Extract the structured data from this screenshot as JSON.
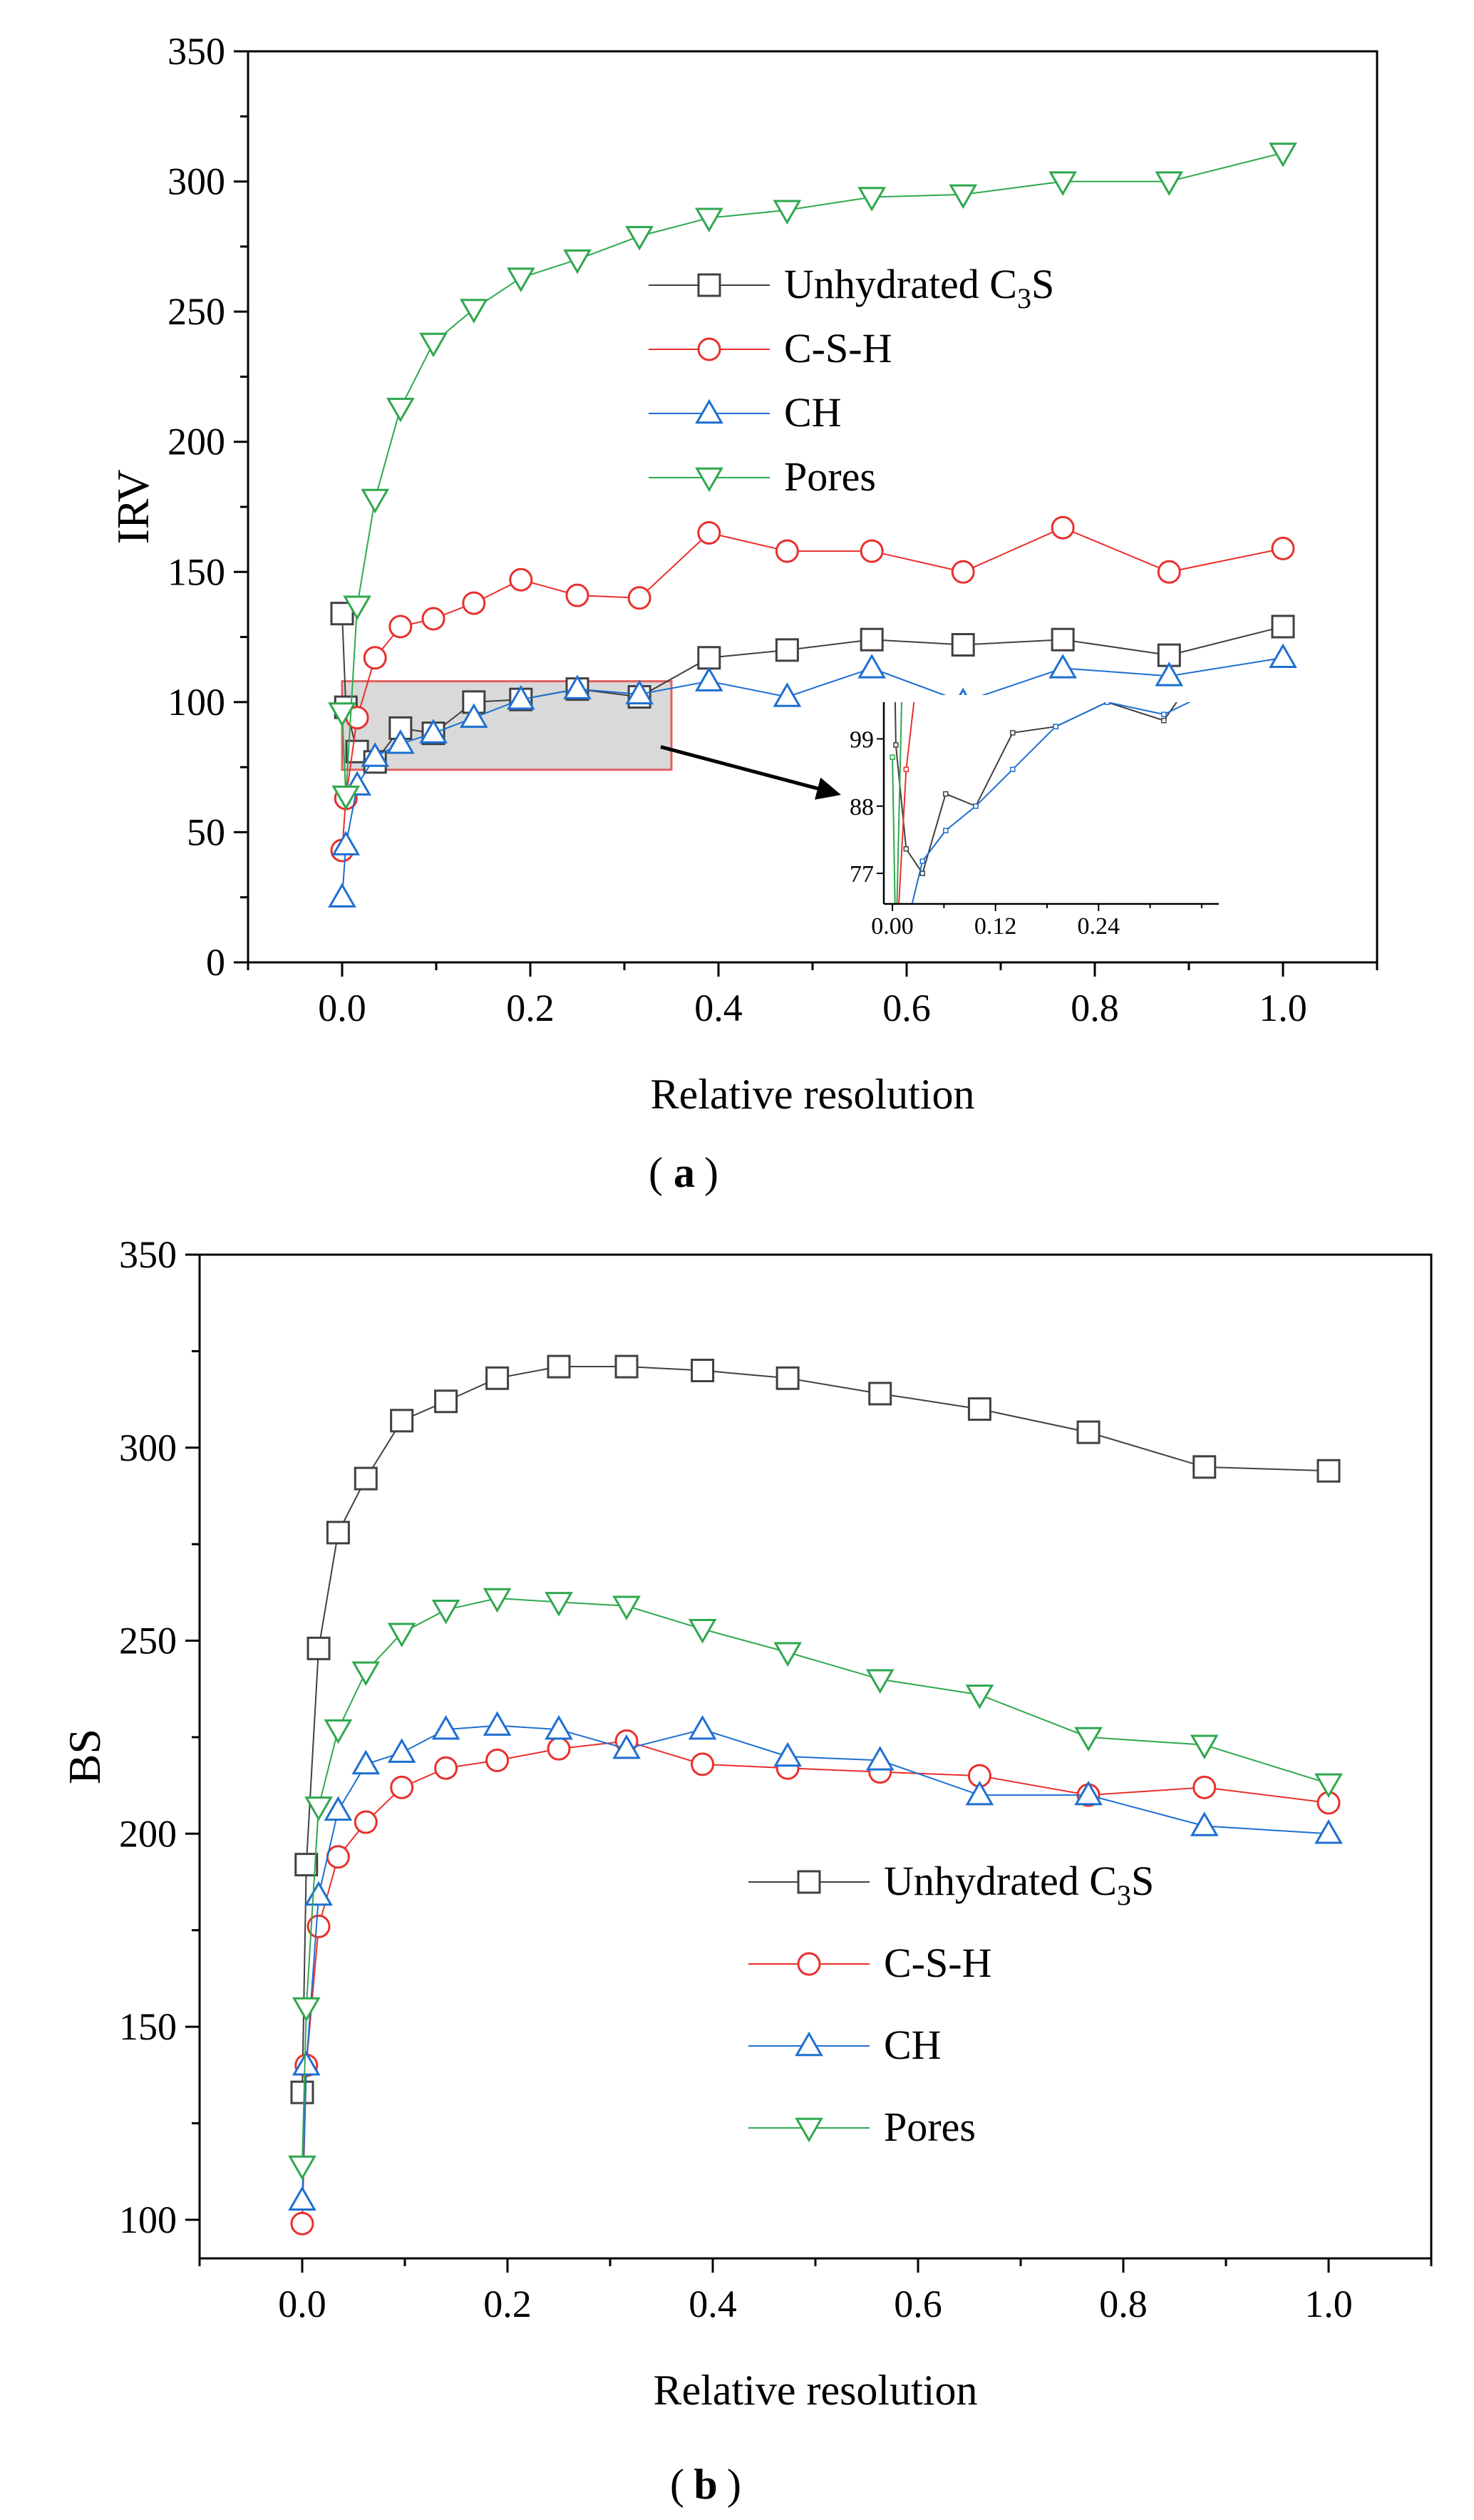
{
  "figure": {
    "panel_a_label": "a",
    "panel_b_label": "b"
  },
  "colors": {
    "Unhydrated C3S": "#404040",
    "C-S-H": "#e8302c",
    "CH": "#1e6fd0",
    "Pores": "#2fa84f",
    "highlight_fill": "#d9d9d9",
    "highlight_stroke": "#e06060"
  },
  "chart_data": [
    {
      "id": "a",
      "type": "line",
      "title": "",
      "xlabel": "Relative resolution",
      "ylabel": "IRV",
      "xlim": [
        -0.1,
        1.1
      ],
      "ylim": [
        0,
        350
      ],
      "xticks": [
        0.0,
        0.2,
        0.4,
        0.6,
        0.8,
        1.0
      ],
      "xtick_labels": [
        "0.0",
        "0.2",
        "0.4",
        "0.6",
        "0.8",
        "1.0"
      ],
      "yticks": [
        0,
        50,
        100,
        150,
        200,
        250,
        300,
        350
      ],
      "ytick_labels": [
        "0",
        "50",
        "100",
        "150",
        "200",
        "250",
        "300",
        "350"
      ],
      "legend_position": "upper-center",
      "series": [
        {
          "name": "Unhydrated C3S",
          "legend_label": "Unhydrated C",
          "legend_sub": "3",
          "legend_suffix": "S",
          "marker": "square",
          "x": [
            0.0,
            0.004,
            0.016,
            0.035,
            0.062,
            0.097,
            0.14,
            0.19,
            0.25,
            0.316,
            0.39,
            0.473,
            0.563,
            0.66,
            0.766,
            0.879,
            1.0
          ],
          "y": [
            134,
            98,
            81,
            77,
            90,
            88,
            100,
            101,
            105,
            102,
            117,
            120,
            124,
            122,
            124,
            118,
            129
          ]
        },
        {
          "name": "C-S-H",
          "legend_label": "C-S-H",
          "marker": "circle",
          "x": [
            0.0,
            0.004,
            0.016,
            0.035,
            0.062,
            0.097,
            0.14,
            0.19,
            0.25,
            0.316,
            0.39,
            0.473,
            0.563,
            0.66,
            0.766,
            0.879,
            1.0
          ],
          "y": [
            43,
            63,
            94,
            117,
            129,
            132,
            138,
            147,
            141,
            140,
            165,
            158,
            158,
            150,
            167,
            150,
            159
          ]
        },
        {
          "name": "CH",
          "legend_label": "CH",
          "marker": "triangle-up",
          "x": [
            0.0,
            0.004,
            0.016,
            0.035,
            0.062,
            0.097,
            0.14,
            0.19,
            0.25,
            0.316,
            0.39,
            0.473,
            0.563,
            0.66,
            0.766,
            0.879,
            1.0
          ],
          "y": [
            25,
            45,
            68,
            79,
            84,
            88,
            94,
            101,
            105,
            103,
            108,
            102,
            113,
            100,
            113,
            110,
            117
          ]
        },
        {
          "name": "Pores",
          "legend_label": "Pores",
          "marker": "triangle-down",
          "x": [
            0.0,
            0.004,
            0.016,
            0.035,
            0.062,
            0.097,
            0.14,
            0.19,
            0.25,
            0.316,
            0.39,
            0.473,
            0.563,
            0.66,
            0.766,
            0.879,
            1.0
          ],
          "y": [
            96,
            64,
            137,
            178,
            213,
            238,
            251,
            263,
            270,
            279,
            286,
            289,
            294,
            295,
            300,
            300,
            311
          ]
        }
      ],
      "highlight_box": {
        "x": [
          0.0,
          0.35
        ],
        "y": [
          74,
          108
        ]
      },
      "inset": {
        "xlim": [
          -0.01,
          0.38
        ],
        "ylim": [
          72,
          105
        ],
        "xticks": [
          0.0,
          0.12,
          0.24
        ],
        "xtick_labels": [
          "0.00",
          "0.12",
          "0.24"
        ],
        "yticks": [
          77,
          88,
          99
        ],
        "ytick_labels": [
          "77",
          "88",
          "99"
        ]
      }
    },
    {
      "id": "b",
      "type": "line",
      "title": "",
      "xlabel": "Relative resolution",
      "ylabel": "BS",
      "xlim": [
        -0.1,
        1.1
      ],
      "ylim": [
        90,
        350
      ],
      "xticks": [
        0.0,
        0.2,
        0.4,
        0.6,
        0.8,
        1.0
      ],
      "xtick_labels": [
        "0.0",
        "0.2",
        "0.4",
        "0.6",
        "0.8",
        "1.0"
      ],
      "yticks": [
        100,
        150,
        200,
        250,
        300,
        350
      ],
      "ytick_labels": [
        "100",
        "150",
        "200",
        "250",
        "300",
        "350"
      ],
      "legend_position": "lower-right",
      "series": [
        {
          "name": "Unhydrated C3S",
          "legend_label": "Unhydrated C",
          "legend_sub": "3",
          "legend_suffix": "S",
          "marker": "square",
          "x": [
            0.0,
            0.004,
            0.016,
            0.035,
            0.062,
            0.097,
            0.14,
            0.19,
            0.25,
            0.316,
            0.39,
            0.473,
            0.563,
            0.66,
            0.766,
            0.879,
            1.0
          ],
          "y": [
            133,
            192,
            248,
            278,
            292,
            307,
            312,
            318,
            321,
            321,
            320,
            318,
            314,
            310,
            304,
            295,
            294
          ]
        },
        {
          "name": "C-S-H",
          "legend_label": "C-S-H",
          "marker": "circle",
          "x": [
            0.0,
            0.004,
            0.016,
            0.035,
            0.062,
            0.097,
            0.14,
            0.19,
            0.25,
            0.316,
            0.39,
            0.473,
            0.563,
            0.66,
            0.766,
            0.879,
            1.0
          ],
          "y": [
            99,
            140,
            176,
            194,
            203,
            212,
            217,
            219,
            222,
            224,
            218,
            217,
            216,
            215,
            210,
            212,
            208
          ]
        },
        {
          "name": "CH",
          "legend_label": "CH",
          "marker": "triangle-up",
          "x": [
            0.0,
            0.004,
            0.016,
            0.035,
            0.062,
            0.097,
            0.14,
            0.19,
            0.25,
            0.316,
            0.39,
            0.473,
            0.563,
            0.66,
            0.766,
            0.879,
            1.0
          ],
          "y": [
            105,
            140,
            184,
            206,
            218,
            221,
            227,
            228,
            227,
            222,
            227,
            220,
            219,
            210,
            210,
            202,
            200
          ]
        },
        {
          "name": "Pores",
          "legend_label": "Pores",
          "marker": "triangle-down",
          "x": [
            0.0,
            0.004,
            0.016,
            0.035,
            0.062,
            0.097,
            0.14,
            0.19,
            0.25,
            0.316,
            0.39,
            0.473,
            0.563,
            0.66,
            0.766,
            0.879,
            1.0
          ],
          "y": [
            114,
            155,
            207,
            227,
            242,
            252,
            258,
            261,
            260,
            259,
            253,
            247,
            240,
            236,
            225,
            223,
            213
          ]
        }
      ]
    }
  ]
}
